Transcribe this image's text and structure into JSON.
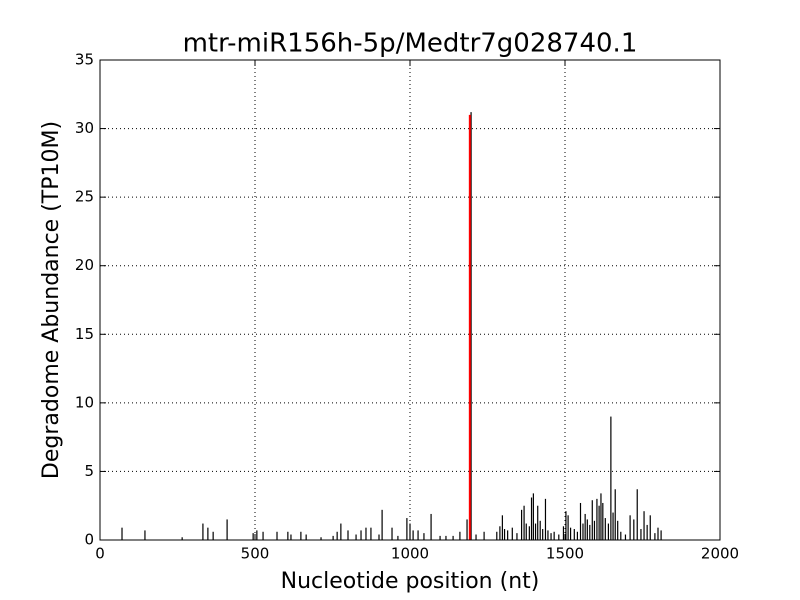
{
  "chart_data": {
    "type": "stem",
    "title": "mtr-miR156h-5p/Medtr7g028740.1",
    "x_label": "Nucleotide position (nt)",
    "y_label": "Degradome Abundance (TP10M)",
    "xlim": [
      0,
      2000
    ],
    "xticks": [
      0,
      500,
      1000,
      1500,
      2000
    ],
    "ylim": [
      0,
      35
    ],
    "yticks": [
      0,
      5,
      10,
      15,
      20,
      25,
      30,
      35
    ],
    "grid": true,
    "series": [
      {
        "color": "#000000",
        "x": [
          71,
          145,
          265,
          332,
          348,
          365,
          410,
          494,
          506,
          526,
          571,
          606,
          616,
          648,
          665,
          713,
          752,
          765,
          777,
          800,
          826,
          842,
          858,
          874,
          900,
          910,
          942,
          961,
          990,
          1000,
          1010,
          1026,
          1045,
          1068,
          1097,
          1116,
          1139,
          1161,
          1184,
          1197,
          1213,
          1239,
          1280,
          1290,
          1298,
          1305,
          1315,
          1330,
          1345,
          1360,
          1368,
          1375,
          1385,
          1392,
          1398,
          1405,
          1412,
          1420,
          1428,
          1437,
          1445,
          1455,
          1465,
          1480,
          1495,
          1503,
          1510,
          1518,
          1530,
          1540,
          1550,
          1558,
          1565,
          1572,
          1580,
          1588,
          1595,
          1603,
          1610,
          1616,
          1622,
          1630,
          1640,
          1648,
          1655,
          1662,
          1670,
          1680,
          1695,
          1710,
          1722,
          1733,
          1745,
          1755,
          1765,
          1775,
          1790,
          1800,
          1810
        ],
        "values": [
          0.9,
          0.7,
          0.2,
          1.2,
          0.9,
          0.6,
          1.5,
          0.5,
          0.7,
          0.6,
          0.6,
          0.6,
          0.4,
          0.6,
          0.4,
          0.2,
          0.3,
          0.6,
          1.2,
          0.7,
          0.4,
          0.7,
          0.9,
          0.9,
          0.4,
          2.2,
          0.9,
          0.3,
          1.6,
          1.2,
          0.7,
          0.7,
          0.5,
          1.9,
          0.3,
          0.3,
          0.3,
          0.6,
          1.5,
          31.2,
          0.4,
          0.6,
          0.6,
          1.0,
          1.8,
          0.8,
          0.7,
          0.9,
          0.5,
          2.2,
          2.5,
          1.2,
          1.0,
          3.1,
          3.4,
          1.2,
          2.5,
          1.4,
          0.8,
          3.0,
          0.7,
          0.5,
          0.6,
          0.4,
          1.0,
          2.1,
          1.8,
          0.9,
          0.8,
          0.6,
          2.7,
          1.2,
          1.9,
          1.5,
          1.1,
          2.9,
          1.4,
          3.0,
          2.5,
          3.4,
          2.7,
          1.6,
          1.2,
          9.0,
          2.0,
          3.7,
          1.4,
          0.6,
          0.4,
          1.8,
          1.5,
          3.7,
          0.8,
          2.1,
          1.1,
          1.8,
          0.5,
          0.9,
          0.7
        ]
      },
      {
        "color": "#ff0000",
        "x": [
          1193
        ],
        "values": [
          31
        ]
      }
    ]
  }
}
